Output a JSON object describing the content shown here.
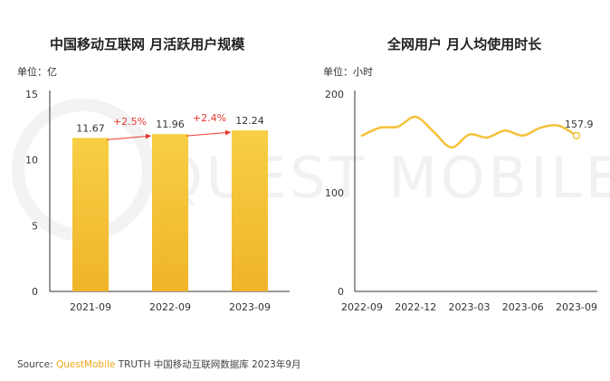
{
  "watermark": "QUEST MOBILE",
  "source": {
    "label": "Source:",
    "brand": "QuestMobile",
    "text": "TRUTH 中国移动互联网数据库 2023年9月"
  },
  "colors": {
    "bar": "#f2b72e",
    "growth_arrow": "#e8392d",
    "line": "#f4c23a",
    "axis": "#333333"
  },
  "chart_data": [
    {
      "type": "bar",
      "title": "中国移动互联网 月活跃用户规模",
      "unit_label": "单位：亿",
      "categories": [
        "2021-09",
        "2022-09",
        "2023-09"
      ],
      "values": [
        11.67,
        11.96,
        12.24
      ],
      "value_labels": [
        "11.67",
        "11.96",
        "12.24"
      ],
      "growth_labels": [
        "+2.5%",
        "+2.4%"
      ],
      "yticks": [
        "0",
        "5",
        "10",
        "15"
      ],
      "ylim": [
        0,
        15
      ]
    },
    {
      "type": "line",
      "title": "全网用户 月人均使用时长",
      "unit_label": "单位：小时",
      "x": [
        0,
        1,
        2,
        3,
        4,
        5,
        6,
        7,
        8,
        9,
        10,
        11,
        12
      ],
      "values": [
        158,
        166,
        167,
        177,
        162,
        146,
        159,
        156,
        163,
        158,
        166,
        168,
        157.9
      ],
      "xticks": [
        "2022-09",
        "2022-12",
        "2023-03",
        "2023-06",
        "2023-09"
      ],
      "xtick_index": [
        0,
        3,
        6,
        9,
        12
      ],
      "end_label": "157.9",
      "yticks": [
        "0",
        "100",
        "200"
      ],
      "ylim": [
        0,
        200
      ]
    }
  ]
}
